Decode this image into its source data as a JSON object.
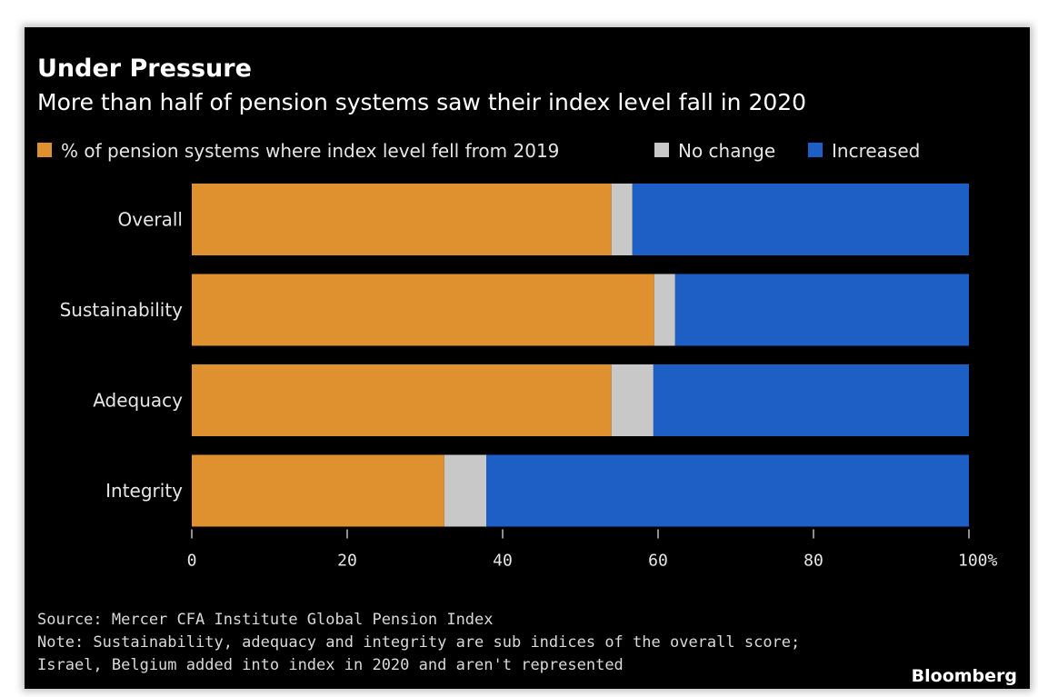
{
  "chart_data": {
    "type": "bar",
    "orientation": "horizontal",
    "stacked": true,
    "title": "Under Pressure",
    "subtitle": "More than half of pension systems saw their index level fall in 2020",
    "categories": [
      "Overall",
      "Sustainability",
      "Adequacy",
      "Integrity"
    ],
    "series": [
      {
        "name": "% of pension systems where index level fell from 2019",
        "color": "#e0912f",
        "values": [
          54,
          59.5,
          54,
          32.5
        ]
      },
      {
        "name": "No change",
        "color": "#c8c8c8",
        "values": [
          2.7,
          2.7,
          5.4,
          5.4
        ]
      },
      {
        "name": "Increased",
        "color": "#1e5fc6",
        "values": [
          43.3,
          37.8,
          40.6,
          62.1
        ]
      }
    ],
    "xlim": [
      0,
      100
    ],
    "x_ticks": [
      "0",
      "20",
      "40",
      "60",
      "80",
      "100%"
    ],
    "x_tick_values": [
      0,
      20,
      40,
      60,
      80,
      100
    ],
    "legend_placement": "top-left",
    "grid": false,
    "source": "Source: Mercer CFA Institute Global Pension Index",
    "note_lines": [
      "Note: Sustainability, adequacy and integrity are sub indices of the overall score;",
      "Israel, Belgium added into index in 2020 and aren't represented"
    ],
    "brand": "Bloomberg"
  }
}
